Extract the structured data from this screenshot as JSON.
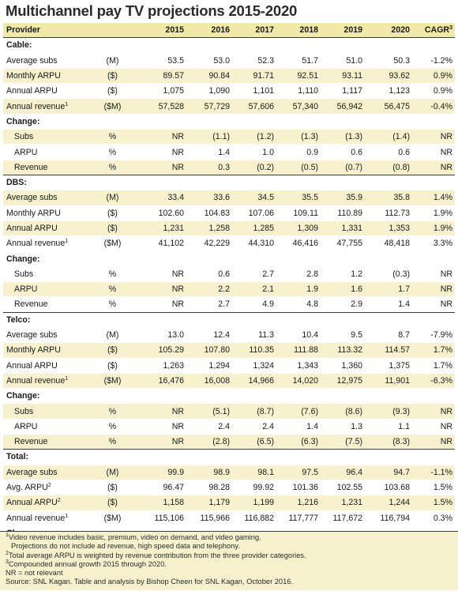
{
  "title": "Multichannel pay TV projections 2015-2020",
  "header": {
    "provider": "Provider",
    "years": [
      "2015",
      "2016",
      "2017",
      "2018",
      "2019",
      "2020"
    ],
    "cagr": "CAGR",
    "cagr_note": "3"
  },
  "sections": [
    {
      "title": "Cable:",
      "rows": [
        {
          "label": "Average subs",
          "note": "",
          "unit": "(M)",
          "values": [
            "53.5",
            "53.0",
            "52.3",
            "51.7",
            "51.0",
            "50.3"
          ],
          "cagr": "-1.2%",
          "style": "w",
          "bold": false
        },
        {
          "label": "Monthly ARPU",
          "note": "",
          "unit": "($)",
          "values": [
            "89.57",
            "90.84",
            "91.71",
            "92.51",
            "93.11",
            "93.62"
          ],
          "cagr": "0.9%",
          "style": "y",
          "bold": false
        },
        {
          "label": "Annual ARPU",
          "note": "",
          "unit": "($)",
          "values": [
            "1,075",
            "1,090",
            "1,101",
            "1,110",
            "1,117",
            "1,123"
          ],
          "cagr": "0.9%",
          "style": "w",
          "bold": false
        },
        {
          "label": "Annual revenue",
          "note": "1",
          "unit": "($M)",
          "values": [
            "57,528",
            "57,729",
            "57,606",
            "57,340",
            "56,942",
            "56,475"
          ],
          "cagr": "-0.4%",
          "style": "y",
          "bold": false
        }
      ],
      "change": {
        "title": "Change:",
        "rows": [
          {
            "label": "Subs",
            "unit": "%",
            "values": [
              "NR",
              "(1.1)",
              "(1.2)",
              "(1.3)",
              "(1.3)",
              "(1.4)"
            ],
            "cagr": "NR",
            "style": "y"
          },
          {
            "label": "ARPU",
            "unit": "%",
            "values": [
              "NR",
              "1.4",
              "1.0",
              "0.9",
              "0.6",
              "0.6"
            ],
            "cagr": "NR",
            "style": "w"
          },
          {
            "label": "Revenue",
            "unit": "%",
            "values": [
              "NR",
              "0.3",
              "(0.2)",
              "(0.5)",
              "(0.7)",
              "(0.8)"
            ],
            "cagr": "NR",
            "style": "y"
          }
        ]
      }
    },
    {
      "title": "DBS:",
      "rows": [
        {
          "label": "Average subs",
          "note": "",
          "unit": "(M)",
          "values": [
            "33.4",
            "33.6",
            "34.5",
            "35.5",
            "35.9",
            "35.8"
          ],
          "cagr": "1.4%",
          "style": "y",
          "bold": false
        },
        {
          "label": "Monthly ARPU",
          "note": "",
          "unit": "($)",
          "values": [
            "102.60",
            "104.83",
            "107.06",
            "109.11",
            "110.89",
            "112.73"
          ],
          "cagr": "1.9%",
          "style": "w",
          "bold": false
        },
        {
          "label": "Annual ARPU",
          "note": "",
          "unit": "($)",
          "values": [
            "1,231",
            "1,258",
            "1,285",
            "1,309",
            "1,331",
            "1,353"
          ],
          "cagr": "1.9%",
          "style": "y",
          "bold": false
        },
        {
          "label": "Annual revenue",
          "note": "1",
          "unit": "($M)",
          "values": [
            "41,102",
            "42,229",
            "44,310",
            "46,416",
            "47,755",
            "48,418"
          ],
          "cagr": "3.3%",
          "style": "w",
          "bold": false
        }
      ],
      "change": {
        "title": "Change:",
        "rows": [
          {
            "label": "Subs",
            "unit": "%",
            "values": [
              "NR",
              "0.6",
              "2.7",
              "2.8",
              "1.2",
              "(0.3)"
            ],
            "cagr": "NR",
            "style": "w"
          },
          {
            "label": "ARPU",
            "unit": "%",
            "values": [
              "NR",
              "2.2",
              "2.1",
              "1.9",
              "1.6",
              "1.7"
            ],
            "cagr": "NR",
            "style": "y"
          },
          {
            "label": "Revenue",
            "unit": "%",
            "values": [
              "NR",
              "2.7",
              "4.9",
              "4.8",
              "2.9",
              "1.4"
            ],
            "cagr": "NR",
            "style": "w"
          }
        ]
      }
    },
    {
      "title": "Telco:",
      "rows": [
        {
          "label": "Average subs",
          "note": "",
          "unit": "(M)",
          "values": [
            "13.0",
            "12.4",
            "11.3",
            "10.4",
            "9.5",
            "8.7"
          ],
          "cagr": "-7.9%",
          "style": "w",
          "bold": false
        },
        {
          "label": "Monthly ARPU",
          "note": "",
          "unit": "($)",
          "values": [
            "105.29",
            "107.80",
            "110.35",
            "111.88",
            "113.32",
            "114.57"
          ],
          "cagr": "1.7%",
          "style": "y",
          "bold": false
        },
        {
          "label": "Annual ARPU",
          "note": "",
          "unit": "($)",
          "values": [
            "1,263",
            "1,294",
            "1,324",
            "1,343",
            "1,360",
            "1,375"
          ],
          "cagr": "1.7%",
          "style": "w",
          "bold": false
        },
        {
          "label": "Annual revenue",
          "note": "1",
          "unit": "($M)",
          "values": [
            "16,476",
            "16,008",
            "14,966",
            "14,020",
            "12,975",
            "11,901"
          ],
          "cagr": "-6.3%",
          "style": "y",
          "bold": false
        }
      ],
      "change": {
        "title": "Change:",
        "rows": [
          {
            "label": "Subs",
            "unit": "%",
            "values": [
              "NR",
              "(5.1)",
              "(8.7)",
              "(7.6)",
              "(8.6)",
              "(9.3)"
            ],
            "cagr": "NR",
            "style": "y"
          },
          {
            "label": "ARPU",
            "unit": "%",
            "values": [
              "NR",
              "2.4",
              "2.4",
              "1.4",
              "1.3",
              "1.1"
            ],
            "cagr": "NR",
            "style": "w"
          },
          {
            "label": "Revenue",
            "unit": "%",
            "values": [
              "NR",
              "(2.8)",
              "(6.5)",
              "(6.3)",
              "(7.5)",
              "(8.3)"
            ],
            "cagr": "NR",
            "style": "y"
          }
        ]
      }
    },
    {
      "title": "Total:",
      "rows": [
        {
          "label": "Average subs",
          "note": "",
          "unit": "(M)",
          "values": [
            "99.9",
            "98.9",
            "98.1",
            "97.5",
            "96.4",
            "94.7"
          ],
          "cagr": "-1.1%",
          "style": "y",
          "bold": false
        },
        {
          "label": "Avg. ARPU",
          "note": "2",
          "unit": "($)",
          "values": [
            "96.47",
            "98.28",
            "99.92",
            "101.36",
            "102.55",
            "103.68"
          ],
          "cagr": "1.5%",
          "style": "w",
          "bold": false
        },
        {
          "label": "Annual ARPU",
          "note": "2",
          "unit": "($)",
          "values": [
            "1,158",
            "1,179",
            "1,199",
            "1,216",
            "1,231",
            "1,244"
          ],
          "cagr": "1.5%",
          "style": "y",
          "bold": false
        },
        {
          "label": "Annual revenue",
          "note": "1",
          "unit": "($M)",
          "values": [
            "115,106",
            "115,966",
            "116,882",
            "117,777",
            "117,672",
            "116,794"
          ],
          "cagr": "0.3%",
          "style": "w",
          "bold": false
        }
      ],
      "change": {
        "title": "Change:",
        "rows": [
          {
            "label": "Subs",
            "unit": "%",
            "values": [
              "NR",
              "(1.0)",
              "(0.8)",
              "(0.6)",
              "(1.2)",
              "(1.7)"
            ],
            "cagr": "NR",
            "style": "w"
          },
          {
            "label": "ARPU",
            "unit": "%",
            "values": [
              "NR",
              "1.9",
              "1.7",
              "1.4",
              "1.2",
              "1.1"
            ],
            "cagr": "NR",
            "style": "y"
          },
          {
            "label": "Revenue",
            "unit": "%",
            "values": [
              "NR",
              "0.7",
              "0.8",
              "0.8",
              "(0.1)",
              "(0.7)"
            ],
            "cagr": "NR",
            "style": "w"
          }
        ]
      }
    }
  ],
  "footnotes": [
    {
      "mark": "1",
      "text": "Video revenue includes basic, premium, video on demand, and video gaming.",
      "indent": false
    },
    {
      "mark": "",
      "text": "Projections do not include ad revenue, high speed data and telephony.",
      "indent": true
    },
    {
      "mark": "2",
      "text": "Total average ARPU is weighted by revenue contribution from the three provider categories.",
      "indent": false
    },
    {
      "mark": "3",
      "text": "Compounded annual growth 2015 through 2020.",
      "indent": false
    },
    {
      "mark": "",
      "text": "NR = not relevant",
      "indent": false
    },
    {
      "mark": "",
      "text": "Source: SNL Kagan. Table and analysis by Bishop Cheen for SNL Kagan, October 2016.",
      "indent": false
    }
  ],
  "colors": {
    "header_bg": "#f1e9a6",
    "stripe_bg": "#f7f2cd",
    "rule": "#3c3c3c"
  }
}
